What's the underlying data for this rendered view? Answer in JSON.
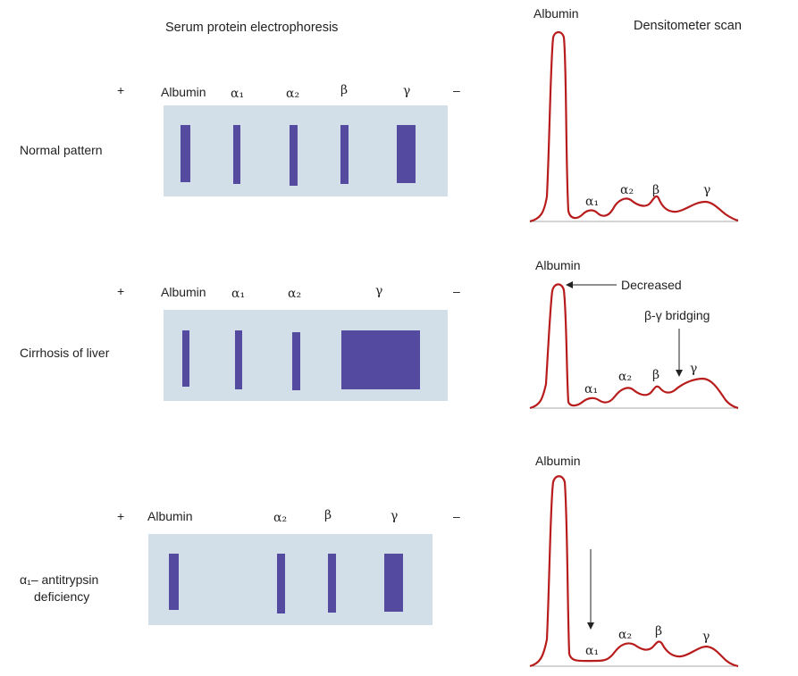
{
  "header": {
    "left_title": "Serum protein electrophoresis",
    "right_title": "Densitometer scan"
  },
  "symbols": {
    "plus": "+",
    "minus": "–"
  },
  "rows": [
    {
      "label": "Normal pattern",
      "gel_labels": [
        "Albumin",
        "α₁",
        "α₂",
        "β",
        "γ"
      ],
      "scan": {
        "peak_label": "Albumin",
        "labels": [
          "α₁",
          "α₂",
          "β",
          "γ"
        ]
      }
    },
    {
      "label": "Cirrhosis of liver",
      "gel_labels": [
        "Albumin",
        "α₁",
        "α₂",
        "γ"
      ],
      "scan": {
        "peak_label": "Albumin",
        "labels": [
          "α₁",
          "α₂",
          "β",
          "γ"
        ],
        "annotations": [
          "Decreased",
          "β-γ bridging"
        ]
      }
    },
    {
      "label_line1": "α₁– antitrypsin",
      "label_line2": "deficiency",
      "gel_labels": [
        "Albumin",
        "α₂",
        "β",
        "γ"
      ],
      "scan": {
        "peak_label": "Albumin",
        "labels": [
          "α₁",
          "α₂",
          "β",
          "γ"
        ]
      }
    }
  ],
  "colors": {
    "band": "#544ba0",
    "panel": "#d3dfe8",
    "curve": "#b81c1c"
  }
}
